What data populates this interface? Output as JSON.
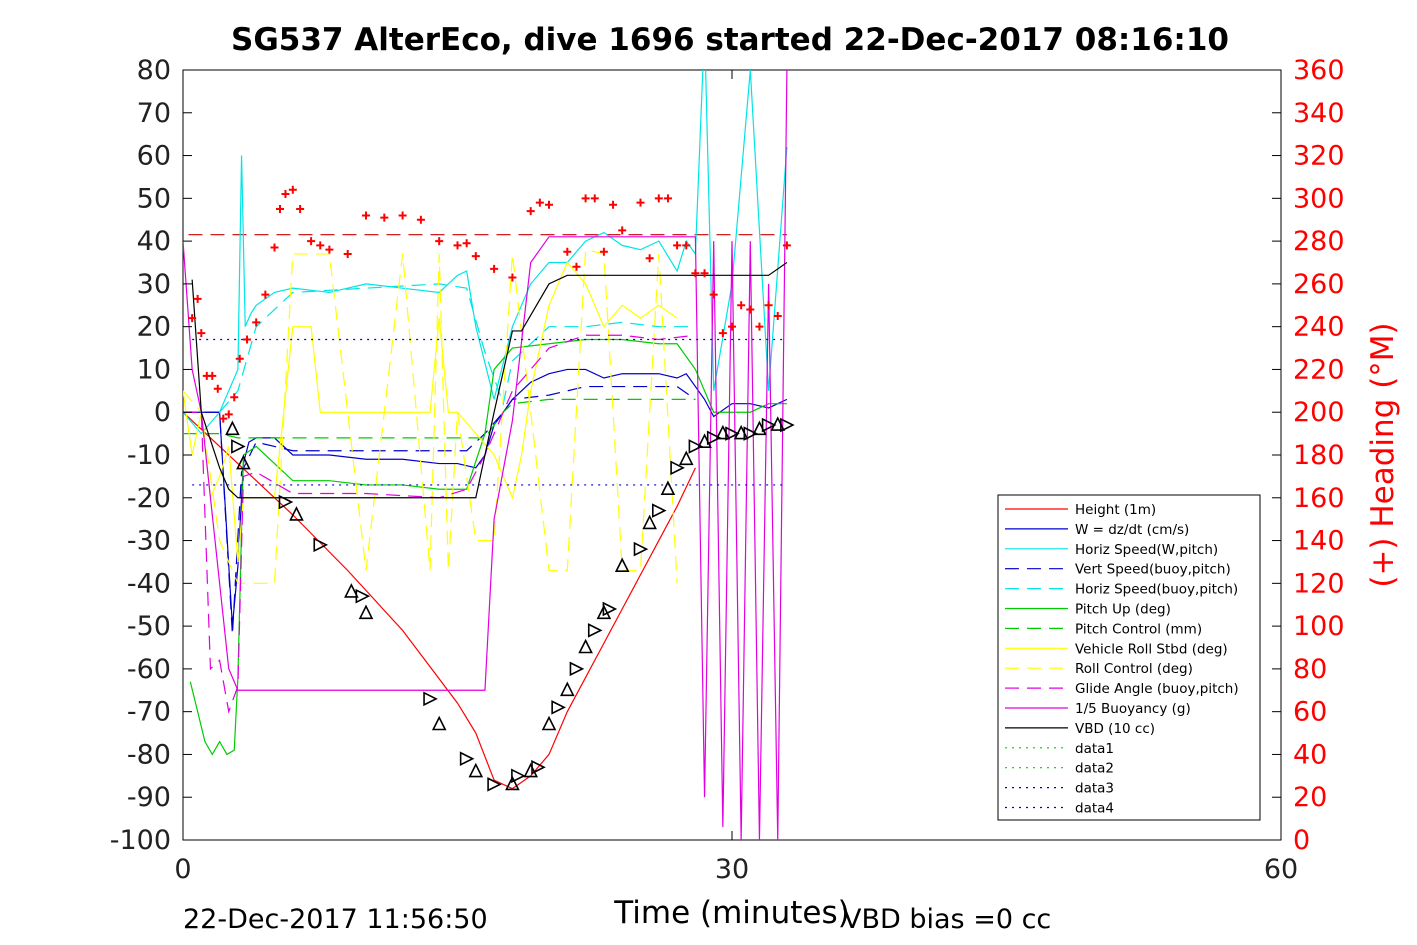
{
  "chart_data": {
    "type": "line",
    "title": "SG537 AlterEco, dive 1696 started 22-Dec-2017 08:16:10",
    "xlabel": "Time (minutes)",
    "ylabel_right": "(+) Heading (°M)",
    "footer_left": "22-Dec-2017 11:56:50",
    "footer_right": "VBD bias =0 cc",
    "xlim": [
      0,
      60
    ],
    "ylim": [
      -100,
      80
    ],
    "ylim_right": [
      0,
      360
    ],
    "xticks": [
      0,
      30,
      60
    ],
    "yticks": [
      80,
      70,
      60,
      50,
      40,
      30,
      20,
      10,
      0,
      -10,
      -20,
      -30,
      -40,
      -50,
      -60,
      -70,
      -80,
      -90,
      -100
    ],
    "yticks_right": [
      360,
      340,
      320,
      300,
      280,
      260,
      240,
      220,
      200,
      180,
      160,
      140,
      120,
      100,
      80,
      60,
      40,
      20,
      0
    ],
    "legend_position": "lower-right",
    "colors": {
      "red": "#ff0000",
      "blue": "#0000cd",
      "cyan": "#00e5e5",
      "green": "#00cc00",
      "yellow": "#ffff00",
      "magenta": "#e100e1",
      "black": "#000000"
    },
    "series": [
      {
        "name": "Height (1m)",
        "color": "#ff0000",
        "dash": "",
        "x": [
          0,
          3,
          6,
          9,
          12,
          15,
          16,
          17,
          18,
          19,
          20,
          21,
          22,
          23,
          24,
          25,
          26,
          27,
          28
        ],
        "y": [
          0,
          -12,
          -24,
          -37,
          -51,
          -68,
          -75,
          -86,
          -88,
          -85,
          -80,
          -70,
          -62,
          -54,
          -46,
          -38,
          -30,
          -22,
          -13
        ]
      },
      {
        "name": "W = dz/dt (cm/s)",
        "color": "#0000cd",
        "dash": "",
        "x": [
          0,
          1,
          2,
          2.7,
          3,
          3.3,
          3.6,
          4,
          5,
          6,
          8,
          10,
          12,
          14,
          15,
          16,
          16.5,
          17,
          18,
          19,
          20,
          21,
          22,
          23,
          24,
          25,
          26,
          27,
          27.5,
          28.5,
          29,
          30,
          31,
          32,
          33
        ],
        "y": [
          0,
          0,
          0,
          -50,
          -36,
          -12,
          -7,
          -6,
          -6,
          -10,
          -10,
          -11,
          -11,
          -12,
          -12,
          -13,
          -10,
          -3,
          3,
          7,
          9,
          10,
          10,
          8,
          9,
          9,
          9,
          8,
          9,
          3,
          -1,
          2,
          2,
          1,
          3
        ]
      },
      {
        "name": "Horiz Speed(W,pitch)",
        "color": "#00e5e5",
        "dash": "",
        "x": [
          0,
          1,
          2,
          3,
          3.2,
          3.4,
          3.7,
          4,
          5,
          6,
          8,
          10,
          12,
          14,
          15,
          15.5,
          16,
          17,
          18,
          19,
          20,
          21,
          22,
          23,
          24,
          25,
          26,
          27,
          27.5,
          28,
          28.5,
          29,
          30,
          31,
          32,
          33
        ],
        "y": [
          0,
          -5,
          0,
          10,
          60,
          20,
          23,
          25,
          28,
          29,
          28,
          30,
          29,
          28,
          32,
          33,
          20,
          3,
          20,
          30,
          35,
          35,
          40,
          42,
          39,
          38,
          40,
          33,
          40,
          37,
          90,
          5,
          30,
          80,
          5,
          62
        ]
      },
      {
        "name": "Vert Speed(buoy,pitch)",
        "color": "#0000cd",
        "dash": "14,8",
        "x": [
          0,
          2,
          2.7,
          3.2,
          4,
          6,
          10,
          14,
          15.5,
          16.5,
          17.5,
          18,
          20,
          22,
          24,
          26,
          27,
          28
        ],
        "y": [
          0,
          0,
          -52,
          -14,
          -7,
          -9,
          -9,
          -9,
          -9,
          -5,
          0,
          3,
          4,
          6,
          6,
          6,
          6,
          3
        ]
      },
      {
        "name": "Horiz Speed(buoy,pitch)",
        "color": "#00e5e5",
        "dash": "14,8",
        "x": [
          2,
          3,
          4,
          6,
          10,
          14,
          15.5,
          16.5,
          17.5,
          18,
          20,
          22,
          24,
          26,
          28
        ],
        "y": [
          0,
          5,
          20,
          28,
          29,
          30,
          29,
          14,
          2,
          12,
          20,
          20,
          21,
          20,
          20
        ]
      },
      {
        "name": "Pitch Up (deg)",
        "color": "#00cc00",
        "dash": "",
        "x": [
          0.4,
          0.8,
          1.2,
          1.6,
          2.0,
          2.4,
          2.8,
          3.0,
          3.3,
          4,
          6,
          8,
          10,
          12,
          14,
          15.5,
          16.5,
          17,
          18,
          20,
          22,
          24,
          26,
          27,
          28,
          29,
          30,
          31,
          32,
          33
        ],
        "y": [
          -63,
          -70,
          -77,
          -80,
          -77,
          -80,
          -79,
          -62,
          -10,
          -8,
          -16,
          -16,
          -17,
          -17,
          -18,
          -18,
          -5,
          10,
          15,
          16,
          17,
          17,
          16,
          16,
          10,
          0,
          0,
          0,
          2,
          2
        ]
      },
      {
        "name": "Pitch Control (mm)",
        "color": "#00cc00",
        "dash": "14,8",
        "x": [
          0,
          2,
          3,
          5,
          10,
          15,
          16.5,
          17.5,
          18,
          20,
          22,
          24,
          26,
          28
        ],
        "y": [
          -5,
          -5,
          -6,
          -6,
          -6,
          -6,
          -6,
          0,
          2,
          3,
          3,
          3,
          3,
          3
        ]
      },
      {
        "name": "Vehicle Roll Stbd (deg)",
        "color": "#ffff00",
        "dash": "",
        "x": [
          0,
          0.5,
          1,
          1.5,
          2,
          2.5,
          3,
          3.3,
          4,
          5,
          5.5,
          6,
          7,
          7.5,
          8,
          10,
          12,
          13.5,
          14,
          14.5,
          15,
          16,
          17,
          18,
          18.5,
          19,
          20,
          21,
          22,
          23,
          24,
          25,
          26,
          27
        ],
        "y": [
          5,
          -10,
          0,
          -20,
          -15,
          -8,
          -35,
          -20,
          -20,
          -20,
          0,
          20,
          20,
          0,
          0,
          0,
          0,
          0,
          22,
          0,
          0,
          -5,
          -10,
          -20,
          -10,
          5,
          25,
          35,
          30,
          20,
          25,
          22,
          25,
          22
        ]
      },
      {
        "name": "Roll Control (deg)",
        "color": "#ffff00",
        "dash": "14,8",
        "x": [
          0,
          1,
          2,
          3,
          4,
          5,
          6,
          8,
          10,
          12,
          13.5,
          14,
          14.5,
          15,
          16,
          17,
          18,
          19,
          20,
          21,
          22,
          23,
          24,
          25,
          26,
          27
        ],
        "y": [
          5,
          0,
          -30,
          -40,
          -40,
          -40,
          37,
          37,
          -37,
          37,
          -37,
          37,
          -37,
          0,
          -30,
          -30,
          37,
          0,
          -37,
          -37,
          38,
          37,
          -37,
          -37,
          37,
          -40
        ]
      },
      {
        "name": "Glide Angle (buoy,pitch)",
        "color": "#e100e1",
        "dash": "14,8",
        "x": [
          0,
          1,
          1.5,
          2,
          2.5,
          3,
          3.3,
          4,
          6,
          10,
          14,
          15.5,
          16.5,
          17.5,
          18,
          20,
          22,
          24,
          26,
          28
        ],
        "y": [
          0,
          0,
          -60,
          -58,
          -70,
          -64,
          -15,
          -14,
          -19,
          -19,
          -20,
          -18,
          -10,
          0,
          5,
          15,
          18,
          18,
          17,
          18
        ]
      },
      {
        "name": "1/5 Buoyancy (g)",
        "color": "#e100e1",
        "dash": "",
        "x": [
          0,
          0.5,
          1,
          1.5,
          2,
          2.5,
          3,
          5,
          10,
          15,
          16.5,
          17,
          18,
          19,
          20,
          25,
          28,
          28.5,
          29,
          29.5,
          30,
          30.5,
          31,
          31.5,
          32,
          32.5,
          33
        ],
        "y": [
          40,
          10,
          0,
          -20,
          -40,
          -60,
          -65,
          -65,
          -65,
          -65,
          -65,
          -25,
          -2,
          35,
          41,
          41,
          41,
          -90,
          40,
          -97,
          40,
          -100,
          40,
          -100,
          30,
          -100,
          80
        ]
      },
      {
        "name": "VBD (10 cc)",
        "color": "#000000",
        "dash": "",
        "x": [
          0.5,
          1,
          2,
          2.5,
          3,
          4,
          10,
          15,
          16,
          17,
          18,
          18.5,
          20,
          21,
          25,
          28,
          31,
          32,
          33
        ],
        "y": [
          31,
          0,
          -13,
          -18,
          -20,
          -20,
          -20,
          -20,
          -20,
          0,
          19,
          19,
          30,
          32,
          32,
          32,
          32,
          32,
          35
        ]
      },
      {
        "name": "data1",
        "color": "#00cc00",
        "dash": "2,5",
        "x": [],
        "y": []
      },
      {
        "name": "data2",
        "color": "#00cc00",
        "dash": "2,5",
        "x": [],
        "y": []
      },
      {
        "name": "data3",
        "color": "#0000cd",
        "dash": "2,5",
        "x": [
          0.5,
          33
        ],
        "y": [
          17,
          17
        ]
      },
      {
        "name": "data4",
        "color": "#0000cd",
        "dash": "2,5",
        "x": [
          0.5,
          33
        ],
        "y": [
          -17,
          -17
        ]
      }
    ],
    "heading_target": {
      "color": "#cc0000",
      "dash": "14,8",
      "x": [
        0.3,
        33
      ],
      "y_right": [
        283,
        283
      ]
    },
    "heading_points": {
      "color": "#ff0000",
      "x": [
        0.5,
        0.8,
        1.0,
        1.3,
        1.6,
        1.9,
        2.2,
        2.5,
        2.8,
        3.1,
        3.5,
        4,
        4.5,
        5,
        5.3,
        5.6,
        6,
        6.4,
        7,
        7.5,
        8,
        9,
        10,
        11,
        12,
        13,
        14,
        15,
        15.5,
        16,
        17,
        18,
        19,
        19.5,
        20,
        21,
        21.5,
        22,
        22.5,
        23,
        23.5,
        24,
        25,
        25.5,
        26,
        26.5,
        27,
        27.5,
        28,
        28.5,
        29,
        29.5,
        30,
        30.5,
        31,
        31.5,
        32,
        32.5,
        33
      ],
      "y_right": [
        244,
        253,
        237,
        217,
        217,
        211,
        197,
        199,
        207,
        225,
        234,
        242,
        255,
        277,
        295,
        302,
        304,
        295,
        280,
        278,
        276,
        274,
        292,
        291,
        292,
        290,
        280,
        278,
        279,
        273,
        267,
        263,
        294,
        298,
        297,
        275,
        268,
        300,
        300,
        275,
        297,
        285,
        298,
        272,
        300,
        300,
        278,
        278,
        265,
        265,
        255,
        237,
        240,
        250,
        248,
        240,
        250,
        245,
        278
      ]
    },
    "depth_markers": {
      "color": "#000000",
      "x": [
        2.7,
        3,
        3.3,
        5.6,
        6.2,
        7.5,
        9.2,
        9.8,
        10,
        13.5,
        14,
        15.5,
        16,
        17,
        18,
        18.3,
        19,
        19.4,
        20,
        20.5,
        21,
        21.5,
        22,
        22.5,
        23,
        23.3,
        24,
        25,
        25.5,
        26,
        26.5,
        27,
        27.5,
        28,
        28.5,
        29,
        29.5,
        30,
        30.5,
        31,
        31.5,
        32,
        32.5,
        33
      ],
      "y": [
        -4,
        -8,
        -12,
        -21,
        -24,
        -31,
        -42,
        -43,
        -47,
        -67,
        -73,
        -81,
        -84,
        -87,
        -87,
        -85,
        -84,
        -83,
        -73,
        -69,
        -65,
        -60,
        -55,
        -51,
        -47,
        -46,
        -36,
        -32,
        -26,
        -23,
        -18,
        -13,
        -11,
        -8,
        -7,
        -6,
        -5,
        -5,
        -5,
        -5,
        -4,
        -3,
        -3,
        -3
      ]
    }
  }
}
